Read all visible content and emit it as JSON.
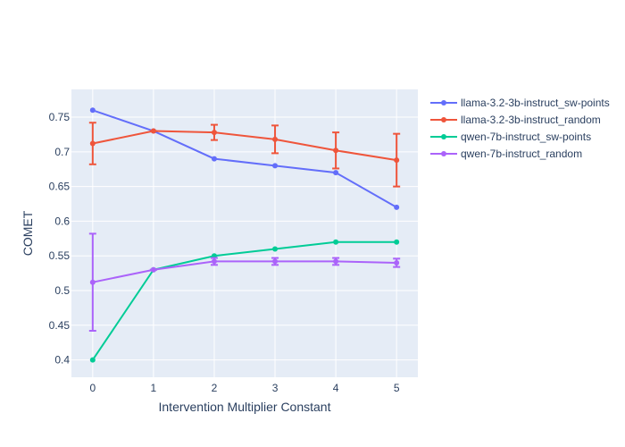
{
  "chart_data": {
    "type": "line",
    "title": "",
    "xlabel": "Intervention Multiplier Constant",
    "ylabel": "COMET",
    "x": [
      0,
      1,
      2,
      3,
      4,
      5
    ],
    "xlim": [
      -0.35,
      5.35
    ],
    "ylim": [
      0.375,
      0.79
    ],
    "xticks": [
      0,
      1,
      2,
      3,
      4,
      5
    ],
    "yticks": [
      0.4,
      0.45,
      0.5,
      0.55,
      0.6,
      0.65,
      0.7,
      0.75
    ],
    "ytick_labels": [
      "0.4",
      "0.45",
      "0.5",
      "0.55",
      "0.6",
      "0.65",
      "0.7",
      "0.75"
    ],
    "grid": true,
    "legend_position": "top-right outside",
    "plot_background": "#e5ecf6",
    "series": [
      {
        "name": "llama-3.2-3b-instruct_sw-points",
        "color": "#636efa",
        "values": [
          0.76,
          0.73,
          0.69,
          0.68,
          0.67,
          0.62
        ],
        "error": null
      },
      {
        "name": "llama-3.2-3b-instruct_random",
        "color": "#ef553b",
        "values": [
          0.712,
          0.73,
          0.728,
          0.718,
          0.702,
          0.688
        ],
        "error": [
          0.03,
          0.0,
          0.011,
          0.02,
          0.026,
          0.038
        ]
      },
      {
        "name": "qwen-7b-instruct_sw-points",
        "color": "#00cc96",
        "values": [
          0.4,
          0.53,
          0.55,
          0.56,
          0.57,
          0.57
        ],
        "error": null
      },
      {
        "name": "qwen-7b-instruct_random",
        "color": "#ab63fa",
        "values": [
          0.512,
          0.53,
          0.542,
          0.542,
          0.542,
          0.54
        ],
        "error": [
          0.07,
          0.0,
          0.005,
          0.005,
          0.005,
          0.006
        ]
      }
    ]
  }
}
